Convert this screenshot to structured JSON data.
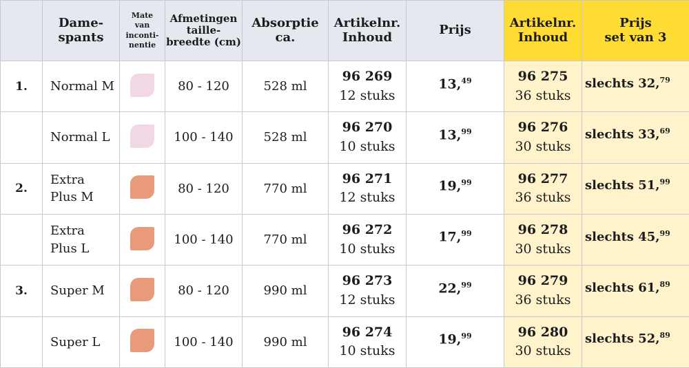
{
  "colors": {
    "header_bg": "#e6e8f0",
    "yellow_header": "#ffdc33",
    "yellow_cells": "#fff3cc",
    "light_swatch": "#f2d8e4",
    "dark_swatch": "#e89a7a"
  },
  "header": {
    "c0": "",
    "c1": [
      "Dame-",
      "spants"
    ],
    "c2": [
      "Mate",
      "van",
      "inconti-",
      "nentie"
    ],
    "c3": [
      "Afmetingen",
      "taille-",
      "breedte (cm)"
    ],
    "c4": [
      "Absorptie",
      "ca."
    ],
    "c5": [
      "Artikelnr.",
      "Inhoud"
    ],
    "c6": [
      "Prijs"
    ],
    "c7": [
      "Artikelnr.",
      "Inhoud"
    ],
    "c8": [
      "Prijs",
      "set van 3"
    ]
  },
  "rows": [
    {
      "index": "1.",
      "name_lines": [
        "Normal M"
      ],
      "swatch": "light",
      "size": "80 - 120",
      "absorb": "528 ml",
      "art": "96 269",
      "qty": "12 stuks",
      "price_int": "13,",
      "price_dec": "49",
      "set_art": "96 275",
      "set_qty": "36 stuks",
      "set_prefix": "slechts ",
      "set_int": "32,",
      "set_dec": "79"
    },
    {
      "index": "",
      "name_lines": [
        "Normal L"
      ],
      "swatch": "light",
      "size": "100 - 140",
      "absorb": "528 ml",
      "art": "96 270",
      "qty": "10 stuks",
      "price_int": "13,",
      "price_dec": "99",
      "set_art": "96 276",
      "set_qty": "30 stuks",
      "set_prefix": "slechts ",
      "set_int": "33,",
      "set_dec": "69"
    },
    {
      "index": "2.",
      "name_lines": [
        "Extra",
        "Plus M"
      ],
      "swatch": "dark",
      "size": "80 - 120",
      "absorb": "770 ml",
      "art": "96 271",
      "qty": "12 stuks",
      "price_int": "19,",
      "price_dec": "99",
      "set_art": "96 277",
      "set_qty": "36 stuks",
      "set_prefix": "slechts ",
      "set_int": "51,",
      "set_dec": "99"
    },
    {
      "index": "",
      "name_lines": [
        "Extra",
        "Plus L"
      ],
      "swatch": "dark",
      "size": "100 - 140",
      "absorb": "770 ml",
      "art": "96 272",
      "qty": "10 stuks",
      "price_int": "17,",
      "price_dec": "99",
      "set_art": "96 278",
      "set_qty": "30 stuks",
      "set_prefix": "slechts ",
      "set_int": "45,",
      "set_dec": "99"
    },
    {
      "index": "3.",
      "name_lines": [
        "Super M"
      ],
      "swatch": "dark",
      "size": "80 - 120",
      "absorb": "990 ml",
      "art": "96 273",
      "qty": "12 stuks",
      "price_int": "22,",
      "price_dec": "99",
      "set_art": "96 279",
      "set_qty": "36 stuks",
      "set_prefix": "slechts ",
      "set_int": "61,",
      "set_dec": "89"
    },
    {
      "index": "",
      "name_lines": [
        "Super L"
      ],
      "swatch": "dark",
      "size": "100 - 140",
      "absorb": "990 ml",
      "art": "96 274",
      "qty": "10 stuks",
      "price_int": "19,",
      "price_dec": "99",
      "set_art": "96 280",
      "set_qty": "30 stuks",
      "set_prefix": "slechts ",
      "set_int": "52,",
      "set_dec": "89"
    }
  ]
}
